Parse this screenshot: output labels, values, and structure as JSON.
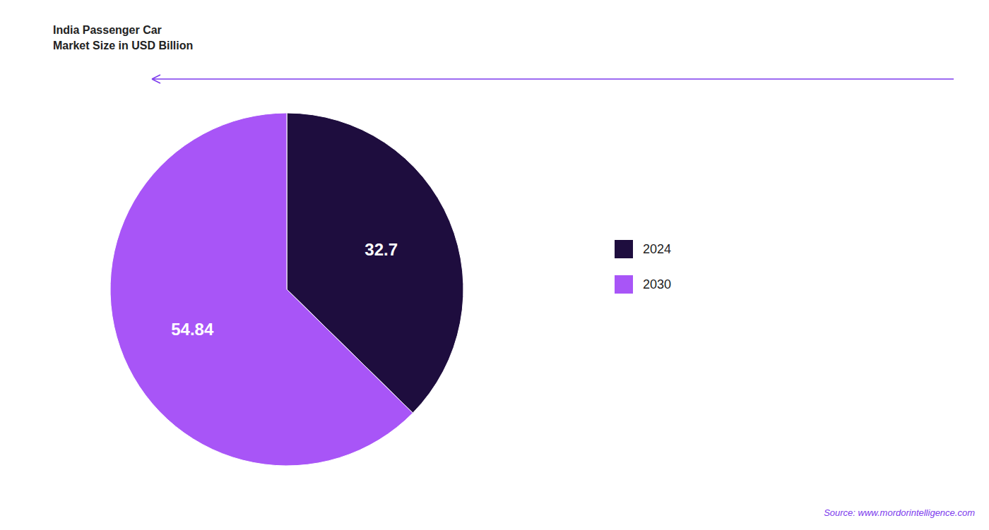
{
  "chart_data": {
    "type": "pie",
    "title": "India Passenger Car",
    "subtitle": "Market Size in USD Billion",
    "categories": [
      "2024",
      "2030"
    ],
    "values": [
      32.7,
      54.84
    ],
    "colors": [
      "#1e0d3e",
      "#a855f7"
    ],
    "data_labels": true,
    "legend": "right",
    "annotations": [
      "Source: www.mordorintelligence.com"
    ]
  }
}
